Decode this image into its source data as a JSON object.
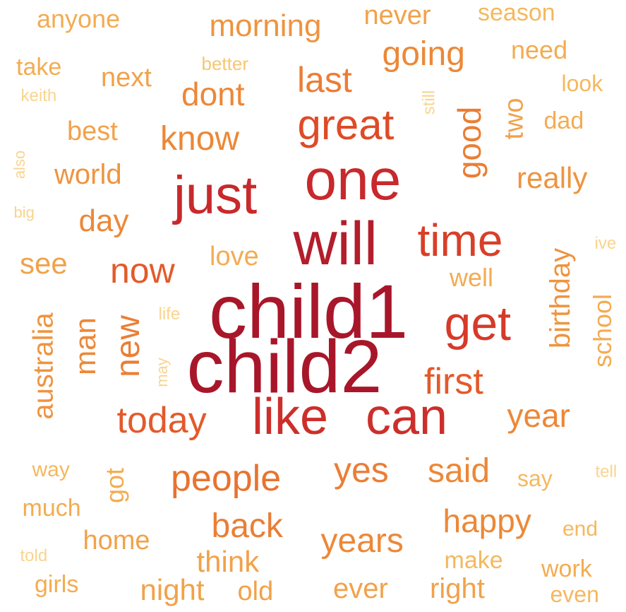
{
  "words": [
    {
      "text": "child1",
      "weight": 1.0,
      "color": "#a8162a",
      "rotation": 0
    },
    {
      "text": "child2",
      "weight": 0.95,
      "color": "#a8162a",
      "rotation": 0
    },
    {
      "text": "will",
      "weight": 0.82,
      "color": "#b31d2c",
      "rotation": 0
    },
    {
      "text": "one",
      "weight": 0.78,
      "color": "#c8292c",
      "rotation": 0
    },
    {
      "text": "just",
      "weight": 0.76,
      "color": "#c8292c",
      "rotation": 0
    },
    {
      "text": "like",
      "weight": 0.72,
      "color": "#cc2f2b",
      "rotation": 0
    },
    {
      "text": "can",
      "weight": 0.72,
      "color": "#cc2f2b",
      "rotation": 0
    },
    {
      "text": "get",
      "weight": 0.64,
      "color": "#d63a29",
      "rotation": 0
    },
    {
      "text": "time",
      "weight": 0.6,
      "color": "#d83f28",
      "rotation": 0
    },
    {
      "text": "great",
      "weight": 0.55,
      "color": "#de4b27",
      "rotation": 0
    },
    {
      "text": "people",
      "weight": 0.5,
      "color": "#e8732f",
      "rotation": 0
    },
    {
      "text": "today",
      "weight": 0.5,
      "color": "#e35a2b",
      "rotation": 0
    },
    {
      "text": "now",
      "weight": 0.48,
      "color": "#e35a2b",
      "rotation": 0
    },
    {
      "text": "first",
      "weight": 0.48,
      "color": "#e35a2b",
      "rotation": 0
    },
    {
      "text": "good",
      "weight": 0.48,
      "color": "#ea7e36",
      "rotation": -90
    },
    {
      "text": "new",
      "weight": 0.46,
      "color": "#ea7e36",
      "rotation": -90
    },
    {
      "text": "yes",
      "weight": 0.46,
      "color": "#ea7e36",
      "rotation": 0
    },
    {
      "text": "last",
      "weight": 0.44,
      "color": "#ea7e36",
      "rotation": 0
    },
    {
      "text": "back",
      "weight": 0.44,
      "color": "#ea7e36",
      "rotation": 0
    },
    {
      "text": "years",
      "weight": 0.42,
      "color": "#ec8838",
      "rotation": 0
    },
    {
      "text": "happy",
      "weight": 0.42,
      "color": "#ec8838",
      "rotation": 0
    },
    {
      "text": "said",
      "weight": 0.42,
      "color": "#ec8838",
      "rotation": 0
    },
    {
      "text": "year",
      "weight": 0.42,
      "color": "#ec8838",
      "rotation": 0
    },
    {
      "text": "know",
      "weight": 0.42,
      "color": "#ec8838",
      "rotation": 0
    },
    {
      "text": "dont",
      "weight": 0.4,
      "color": "#ec8838",
      "rotation": 0
    },
    {
      "text": "going",
      "weight": 0.4,
      "color": "#ec8838",
      "rotation": 0
    },
    {
      "text": "day",
      "weight": 0.4,
      "color": "#ec8838",
      "rotation": 0
    },
    {
      "text": "man",
      "weight": 0.4,
      "color": "#ec8838",
      "rotation": -90
    },
    {
      "text": "birthday",
      "weight": 0.4,
      "color": "#ee9440",
      "rotation": -90
    },
    {
      "text": "really",
      "weight": 0.38,
      "color": "#ee9440",
      "rotation": 0
    },
    {
      "text": "morning",
      "weight": 0.38,
      "color": "#ee9440",
      "rotation": 0
    },
    {
      "text": "world",
      "weight": 0.36,
      "color": "#ee9440",
      "rotation": 0
    },
    {
      "text": "australia",
      "weight": 0.36,
      "color": "#ee9440",
      "rotation": -90
    },
    {
      "text": "see",
      "weight": 0.36,
      "color": "#f1a24a",
      "rotation": 0
    },
    {
      "text": "never",
      "weight": 0.34,
      "color": "#f1a24a",
      "rotation": 0
    },
    {
      "text": "think",
      "weight": 0.34,
      "color": "#f1a24a",
      "rotation": 0
    },
    {
      "text": "night",
      "weight": 0.34,
      "color": "#f1a24a",
      "rotation": 0
    },
    {
      "text": "ever",
      "weight": 0.34,
      "color": "#f1a24a",
      "rotation": 0
    },
    {
      "text": "right",
      "weight": 0.32,
      "color": "#f1a24a",
      "rotation": 0
    },
    {
      "text": "old",
      "weight": 0.32,
      "color": "#f1a24a",
      "rotation": 0
    },
    {
      "text": "two",
      "weight": 0.32,
      "color": "#f1a24a",
      "rotation": -90
    },
    {
      "text": "next",
      "weight": 0.32,
      "color": "#f1a24a",
      "rotation": 0
    },
    {
      "text": "best",
      "weight": 0.32,
      "color": "#f1a24a",
      "rotation": 0
    },
    {
      "text": "home",
      "weight": 0.32,
      "color": "#f1a24a",
      "rotation": 0
    },
    {
      "text": "school",
      "weight": 0.32,
      "color": "#f3ac52",
      "rotation": -90
    },
    {
      "text": "well",
      "weight": 0.32,
      "color": "#f3ac52",
      "rotation": 0
    },
    {
      "text": "love",
      "weight": 0.32,
      "color": "#f3ac52",
      "rotation": 0
    },
    {
      "text": "anyone",
      "weight": 0.3,
      "color": "#f3ac52",
      "rotation": 0
    },
    {
      "text": "need",
      "weight": 0.3,
      "color": "#f3ac52",
      "rotation": 0
    },
    {
      "text": "season",
      "weight": 0.28,
      "color": "#f5b85e",
      "rotation": 0
    },
    {
      "text": "make",
      "weight": 0.28,
      "color": "#f5b85e",
      "rotation": 0
    },
    {
      "text": "work",
      "weight": 0.28,
      "color": "#f3ac52",
      "rotation": 0
    },
    {
      "text": "girls",
      "weight": 0.28,
      "color": "#f3ac52",
      "rotation": 0
    },
    {
      "text": "much",
      "weight": 0.28,
      "color": "#f3ac52",
      "rotation": 0
    },
    {
      "text": "got",
      "weight": 0.28,
      "color": "#f3ac52",
      "rotation": -90
    },
    {
      "text": "take",
      "weight": 0.28,
      "color": "#f3ac52",
      "rotation": 0
    },
    {
      "text": "dad",
      "weight": 0.28,
      "color": "#f3ac52",
      "rotation": 0
    },
    {
      "text": "look",
      "weight": 0.26,
      "color": "#f5b85e",
      "rotation": 0
    },
    {
      "text": "say",
      "weight": 0.26,
      "color": "#f5b85e",
      "rotation": 0
    },
    {
      "text": "even",
      "weight": 0.26,
      "color": "#f5b85e",
      "rotation": 0
    },
    {
      "text": "end",
      "weight": 0.24,
      "color": "#f5b85e",
      "rotation": 0
    },
    {
      "text": "way",
      "weight": 0.24,
      "color": "#f5b85e",
      "rotation": 0
    },
    {
      "text": "better",
      "weight": 0.22,
      "color": "#f7c673",
      "rotation": 0
    },
    {
      "text": "keith",
      "weight": 0.2,
      "color": "#f9d48e",
      "rotation": 0
    },
    {
      "text": "still",
      "weight": 0.2,
      "color": "#f9d48e",
      "rotation": -90
    },
    {
      "text": "also",
      "weight": 0.2,
      "color": "#f9d48e",
      "rotation": -90
    },
    {
      "text": "big",
      "weight": 0.2,
      "color": "#f9d48e",
      "rotation": 0
    },
    {
      "text": "life",
      "weight": 0.2,
      "color": "#f9d48e",
      "rotation": 0
    },
    {
      "text": "may",
      "weight": 0.2,
      "color": "#f9d48e",
      "rotation": -90
    },
    {
      "text": "ive",
      "weight": 0.2,
      "color": "#f9d48e",
      "rotation": 0
    },
    {
      "text": "tell",
      "weight": 0.2,
      "color": "#f9d48e",
      "rotation": 0
    },
    {
      "text": "told",
      "weight": 0.2,
      "color": "#f9d48e",
      "rotation": 0
    }
  ]
}
